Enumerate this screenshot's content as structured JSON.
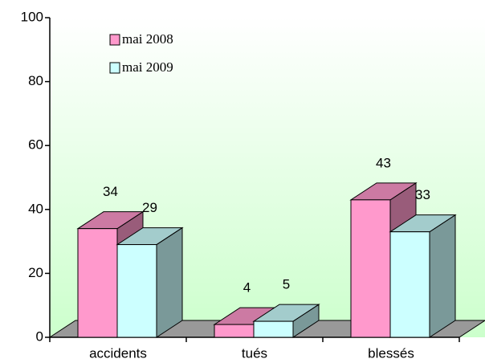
{
  "chart_data": {
    "type": "bar3d",
    "categories": [
      "accidents",
      "tués",
      "blessés"
    ],
    "series": [
      {
        "name": "mai 2008",
        "color": "#ff99cc",
        "values": [
          34,
          4,
          43
        ]
      },
      {
        "name": "mai 2009",
        "color": "#ccffff",
        "values": [
          29,
          5,
          33
        ]
      }
    ],
    "ylim": [
      0,
      100
    ],
    "yticks": [
      0,
      20,
      40,
      60,
      80,
      100
    ],
    "legend": "upper left"
  }
}
